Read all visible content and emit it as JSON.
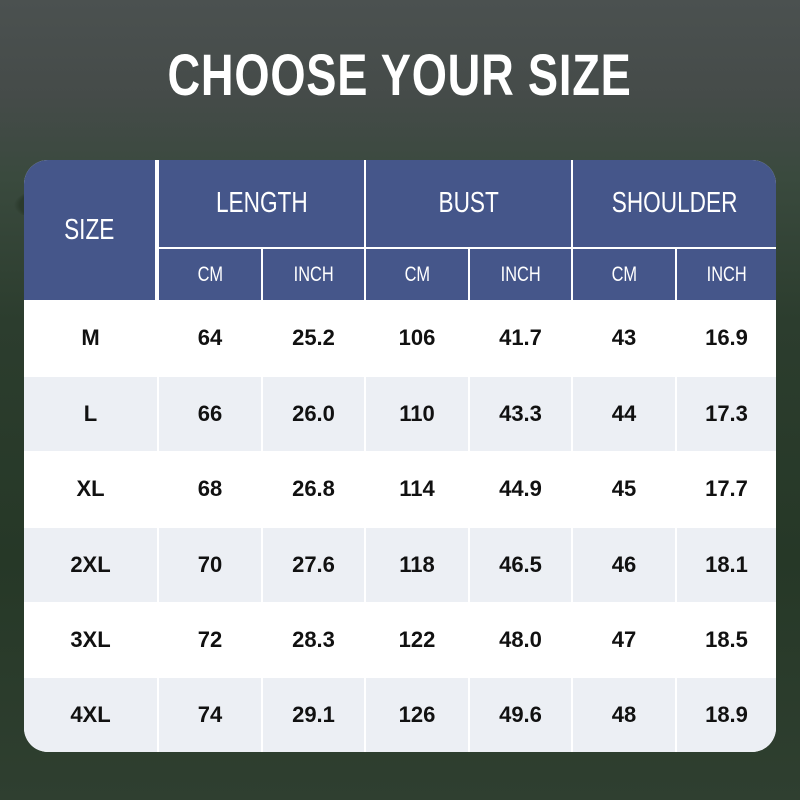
{
  "title": "CHOOSE YOUR SIZE",
  "header": {
    "size": "SIZE",
    "groups": [
      "LENGTH",
      "BUST",
      "SHOULDER"
    ],
    "units": [
      "CM",
      "INCH",
      "CM",
      "INCH",
      "CM",
      "INCH"
    ]
  },
  "rows": [
    [
      "M",
      "64",
      "25.2",
      "106",
      "41.7",
      "43",
      "16.9"
    ],
    [
      "L",
      "66",
      "26.0",
      "110",
      "43.3",
      "44",
      "17.3"
    ],
    [
      "XL",
      "68",
      "26.8",
      "114",
      "44.9",
      "45",
      "17.7"
    ],
    [
      "2XL",
      "70",
      "27.6",
      "118",
      "46.5",
      "46",
      "18.1"
    ],
    [
      "3XL",
      "72",
      "28.3",
      "122",
      "48.0",
      "47",
      "18.5"
    ],
    [
      "4XL",
      "74",
      "29.1",
      "126",
      "49.6",
      "48",
      "18.9"
    ]
  ],
  "colors": {
    "header": "#45568a",
    "alt_row": "#eceff4",
    "text": "#111111"
  }
}
